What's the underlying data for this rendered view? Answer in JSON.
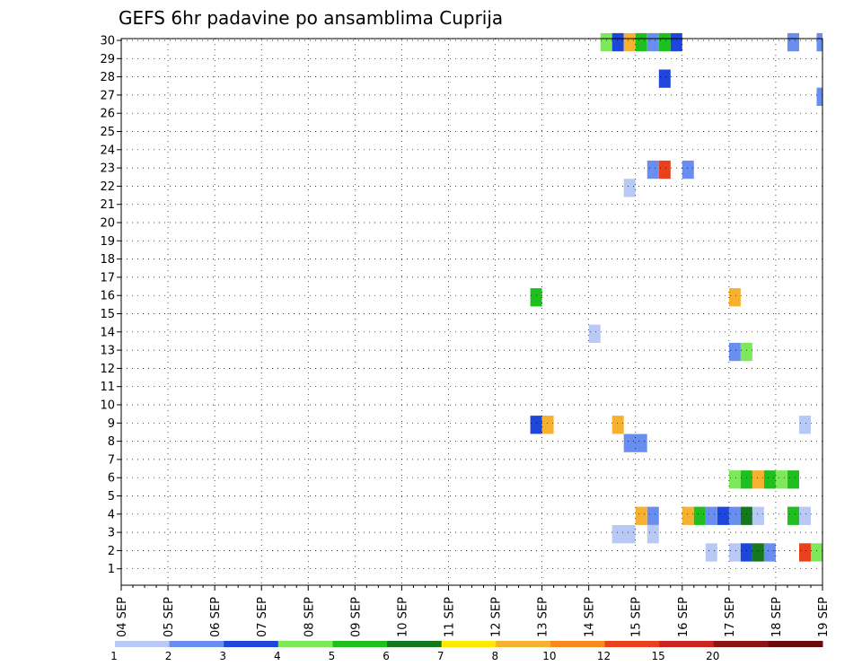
{
  "chart_data": {
    "type": "heatmap",
    "title": "GEFS 6hr padavine po ansamblima Cuprija",
    "xlabel": "",
    "ylabel": "",
    "x_ticks": [
      "04 SEP",
      "05 SEP",
      "06 SEP",
      "07 SEP",
      "08 SEP",
      "09 SEP",
      "10 SEP",
      "11 SEP",
      "12 SEP",
      "13 SEP",
      "14 SEP",
      "15 SEP",
      "16 SEP",
      "17 SEP",
      "18 SEP",
      "19 SEP"
    ],
    "y_ticks": [
      1,
      2,
      3,
      4,
      5,
      6,
      7,
      8,
      9,
      10,
      11,
      12,
      13,
      14,
      15,
      16,
      17,
      18,
      19,
      20,
      21,
      22,
      23,
      24,
      25,
      26,
      27,
      28,
      29,
      30
    ],
    "grid": true,
    "x_unit": "6-hour step from 04 SEP 00Z",
    "legend": {
      "placement": "bottom",
      "bins": [
        {
          "color": "#b9c9f6",
          "label": "1"
        },
        {
          "color": "#6a8ef0",
          "label": "2"
        },
        {
          "color": "#1e46d8",
          "label": "3"
        },
        {
          "color": "#7de85a",
          "label": "4"
        },
        {
          "color": "#1fbf1f",
          "label": "5"
        },
        {
          "color": "#16781e",
          "label": "6"
        },
        {
          "color": "#ffea00",
          "label": "7"
        },
        {
          "color": "#f7b131",
          "label": "8"
        },
        {
          "color": "#f78a1e",
          "label": "10"
        },
        {
          "color": "#e8411e",
          "label": "12"
        },
        {
          "color": "#c8261e",
          "label": "15"
        },
        {
          "color": "#8c1414",
          "label": "20"
        },
        {
          "color": "#6b0a0a",
          "label": ""
        }
      ]
    },
    "cells": [
      {
        "member": 30,
        "x": [
          41,
          42
        ],
        "color": "#7de85a"
      },
      {
        "member": 30,
        "x": [
          42,
          43
        ],
        "color": "#1e46d8"
      },
      {
        "member": 30,
        "x": [
          43,
          44
        ],
        "color": "#f7b131"
      },
      {
        "member": 30,
        "x": [
          44,
          45
        ],
        "color": "#1fbf1f"
      },
      {
        "member": 30,
        "x": [
          45,
          46
        ],
        "color": "#6a8ef0"
      },
      {
        "member": 30,
        "x": [
          46,
          47
        ],
        "color": "#1fbf1f"
      },
      {
        "member": 30,
        "x": [
          47,
          48
        ],
        "color": "#1e46d8"
      },
      {
        "member": 30,
        "x": [
          57,
          58
        ],
        "color": "#6a8ef0"
      },
      {
        "member": 30,
        "x": [
          59.5,
          60
        ],
        "color": "#6a8ef0"
      },
      {
        "member": 28,
        "x": [
          46,
          47
        ],
        "color": "#1e46d8"
      },
      {
        "member": 27,
        "x": [
          59.5,
          60
        ],
        "color": "#6a8ef0"
      },
      {
        "member": 23,
        "x": [
          45,
          46
        ],
        "color": "#6a8ef0"
      },
      {
        "member": 23,
        "x": [
          46,
          47
        ],
        "color": "#e8411e"
      },
      {
        "member": 23,
        "x": [
          48,
          49
        ],
        "color": "#6a8ef0"
      },
      {
        "member": 22,
        "x": [
          43,
          44
        ],
        "color": "#b9c9f6"
      },
      {
        "member": 16,
        "x": [
          35,
          36
        ],
        "color": "#1fbf1f"
      },
      {
        "member": 16,
        "x": [
          52,
          53
        ],
        "color": "#f7b131"
      },
      {
        "member": 14,
        "x": [
          40,
          41
        ],
        "color": "#b9c9f6"
      },
      {
        "member": 13,
        "x": [
          52,
          53
        ],
        "color": "#6a8ef0"
      },
      {
        "member": 13,
        "x": [
          53,
          54
        ],
        "color": "#7de85a"
      },
      {
        "member": 9,
        "x": [
          42,
          43
        ],
        "color": "#f7b131"
      },
      {
        "member": 9,
        "x": [
          35,
          36
        ],
        "color": "#1e46d8"
      },
      {
        "member": 9,
        "x": [
          36,
          37
        ],
        "color": "#f7b131"
      },
      {
        "member": 9,
        "x": [
          58,
          59
        ],
        "color": "#b9c9f6"
      },
      {
        "member": 8,
        "x": [
          43,
          45
        ],
        "color": "#6a8ef0"
      },
      {
        "member": 6,
        "x": [
          52,
          53
        ],
        "color": "#7de85a"
      },
      {
        "member": 6,
        "x": [
          53,
          54
        ],
        "color": "#1fbf1f"
      },
      {
        "member": 6,
        "x": [
          54,
          55
        ],
        "color": "#f7b131"
      },
      {
        "member": 6,
        "x": [
          55,
          56
        ],
        "color": "#1fbf1f"
      },
      {
        "member": 6,
        "x": [
          56,
          57
        ],
        "color": "#7de85a"
      },
      {
        "member": 6,
        "x": [
          57,
          58
        ],
        "color": "#1fbf1f"
      },
      {
        "member": 4,
        "x": [
          44,
          45
        ],
        "color": "#f7b131"
      },
      {
        "member": 4,
        "x": [
          45,
          46
        ],
        "color": "#6a8ef0"
      },
      {
        "member": 4,
        "x": [
          48,
          49
        ],
        "color": "#f7b131"
      },
      {
        "member": 4,
        "x": [
          49,
          50
        ],
        "color": "#1fbf1f"
      },
      {
        "member": 4,
        "x": [
          50,
          51
        ],
        "color": "#6a8ef0"
      },
      {
        "member": 4,
        "x": [
          51,
          52
        ],
        "color": "#1e46d8"
      },
      {
        "member": 4,
        "x": [
          52,
          53
        ],
        "color": "#6a8ef0"
      },
      {
        "member": 4,
        "x": [
          53,
          54
        ],
        "color": "#16781e"
      },
      {
        "member": 4,
        "x": [
          54,
          55
        ],
        "color": "#b9c9f6"
      },
      {
        "member": 4,
        "x": [
          57,
          58
        ],
        "color": "#1fbf1f"
      },
      {
        "member": 4,
        "x": [
          58,
          59
        ],
        "color": "#b9c9f6"
      },
      {
        "member": 3,
        "x": [
          42,
          44
        ],
        "color": "#b9c9f6"
      },
      {
        "member": 3,
        "x": [
          45,
          46
        ],
        "color": "#b9c9f6"
      },
      {
        "member": 2,
        "x": [
          50,
          51
        ],
        "color": "#b9c9f6"
      },
      {
        "member": 2,
        "x": [
          52,
          53
        ],
        "color": "#b9c9f6"
      },
      {
        "member": 2,
        "x": [
          53,
          54
        ],
        "color": "#1e46d8"
      },
      {
        "member": 2,
        "x": [
          54,
          55
        ],
        "color": "#16781e"
      },
      {
        "member": 2,
        "x": [
          55,
          56
        ],
        "color": "#6a8ef0"
      },
      {
        "member": 2,
        "x": [
          58,
          59
        ],
        "color": "#e8411e"
      },
      {
        "member": 2,
        "x": [
          59,
          60
        ],
        "color": "#7de85a"
      }
    ]
  }
}
